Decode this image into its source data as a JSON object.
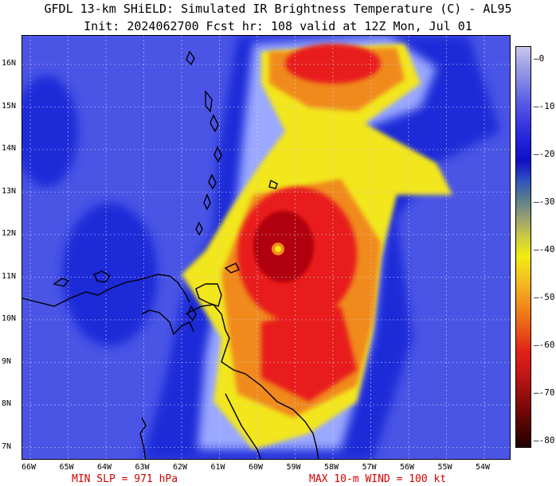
{
  "header": {
    "title_line1": "GFDL 13-km SHiELD: Simulated IR Brightness Temperature (C) - AL95",
    "title_line2": "Init: 2024062700 Fcst hr: 108 valid at 12Z Mon, Jul 01"
  },
  "map": {
    "latitude_labels": [
      "16N",
      "15N",
      "14N",
      "13N",
      "12N",
      "11N",
      "10N",
      "9N",
      "8N",
      "7N"
    ],
    "longitude_labels": [
      "66W",
      "65W",
      "64W",
      "63W",
      "62W",
      "61W",
      "60W",
      "59W",
      "58W",
      "57W",
      "56W",
      "55W",
      "54W"
    ],
    "storm_eye": {
      "lat": 11.6,
      "lon": -59.4
    },
    "colors": {
      "background_warm": "#4a55e6",
      "cloud_blue": "#1a2ad8",
      "cloud_cyan": "#9aa8ff",
      "cloud_yellow": "#f2e61a",
      "cloud_orange": "#f08a1a",
      "cloud_red": "#e81a1a",
      "cloud_darkred": "#b00010",
      "coastline": "#000000",
      "grid": "#cfcfe8"
    }
  },
  "colorbar": {
    "labels": [
      "0",
      "-10",
      "-20",
      "-30",
      "-40",
      "-50",
      "-60",
      "-70",
      "-80"
    ],
    "colors": [
      "#c8c8ec",
      "#a0a0e6",
      "#7a80e6",
      "#5458e4",
      "#3a3ae0",
      "#1e22d8",
      "#1010c4",
      "#3050c0",
      "#5a7e8c",
      "#9aa070",
      "#cccc40",
      "#f2ec10",
      "#f4c820",
      "#f4a020",
      "#ef7a18",
      "#e85018",
      "#e02018",
      "#c81818",
      "#a01010",
      "#7a0808",
      "#4c0404",
      "#200000"
    ]
  },
  "footer": {
    "min_slp": "MIN SLP = 971 hPa",
    "max_wind": "MAX 10-m WIND = 100 kt"
  }
}
